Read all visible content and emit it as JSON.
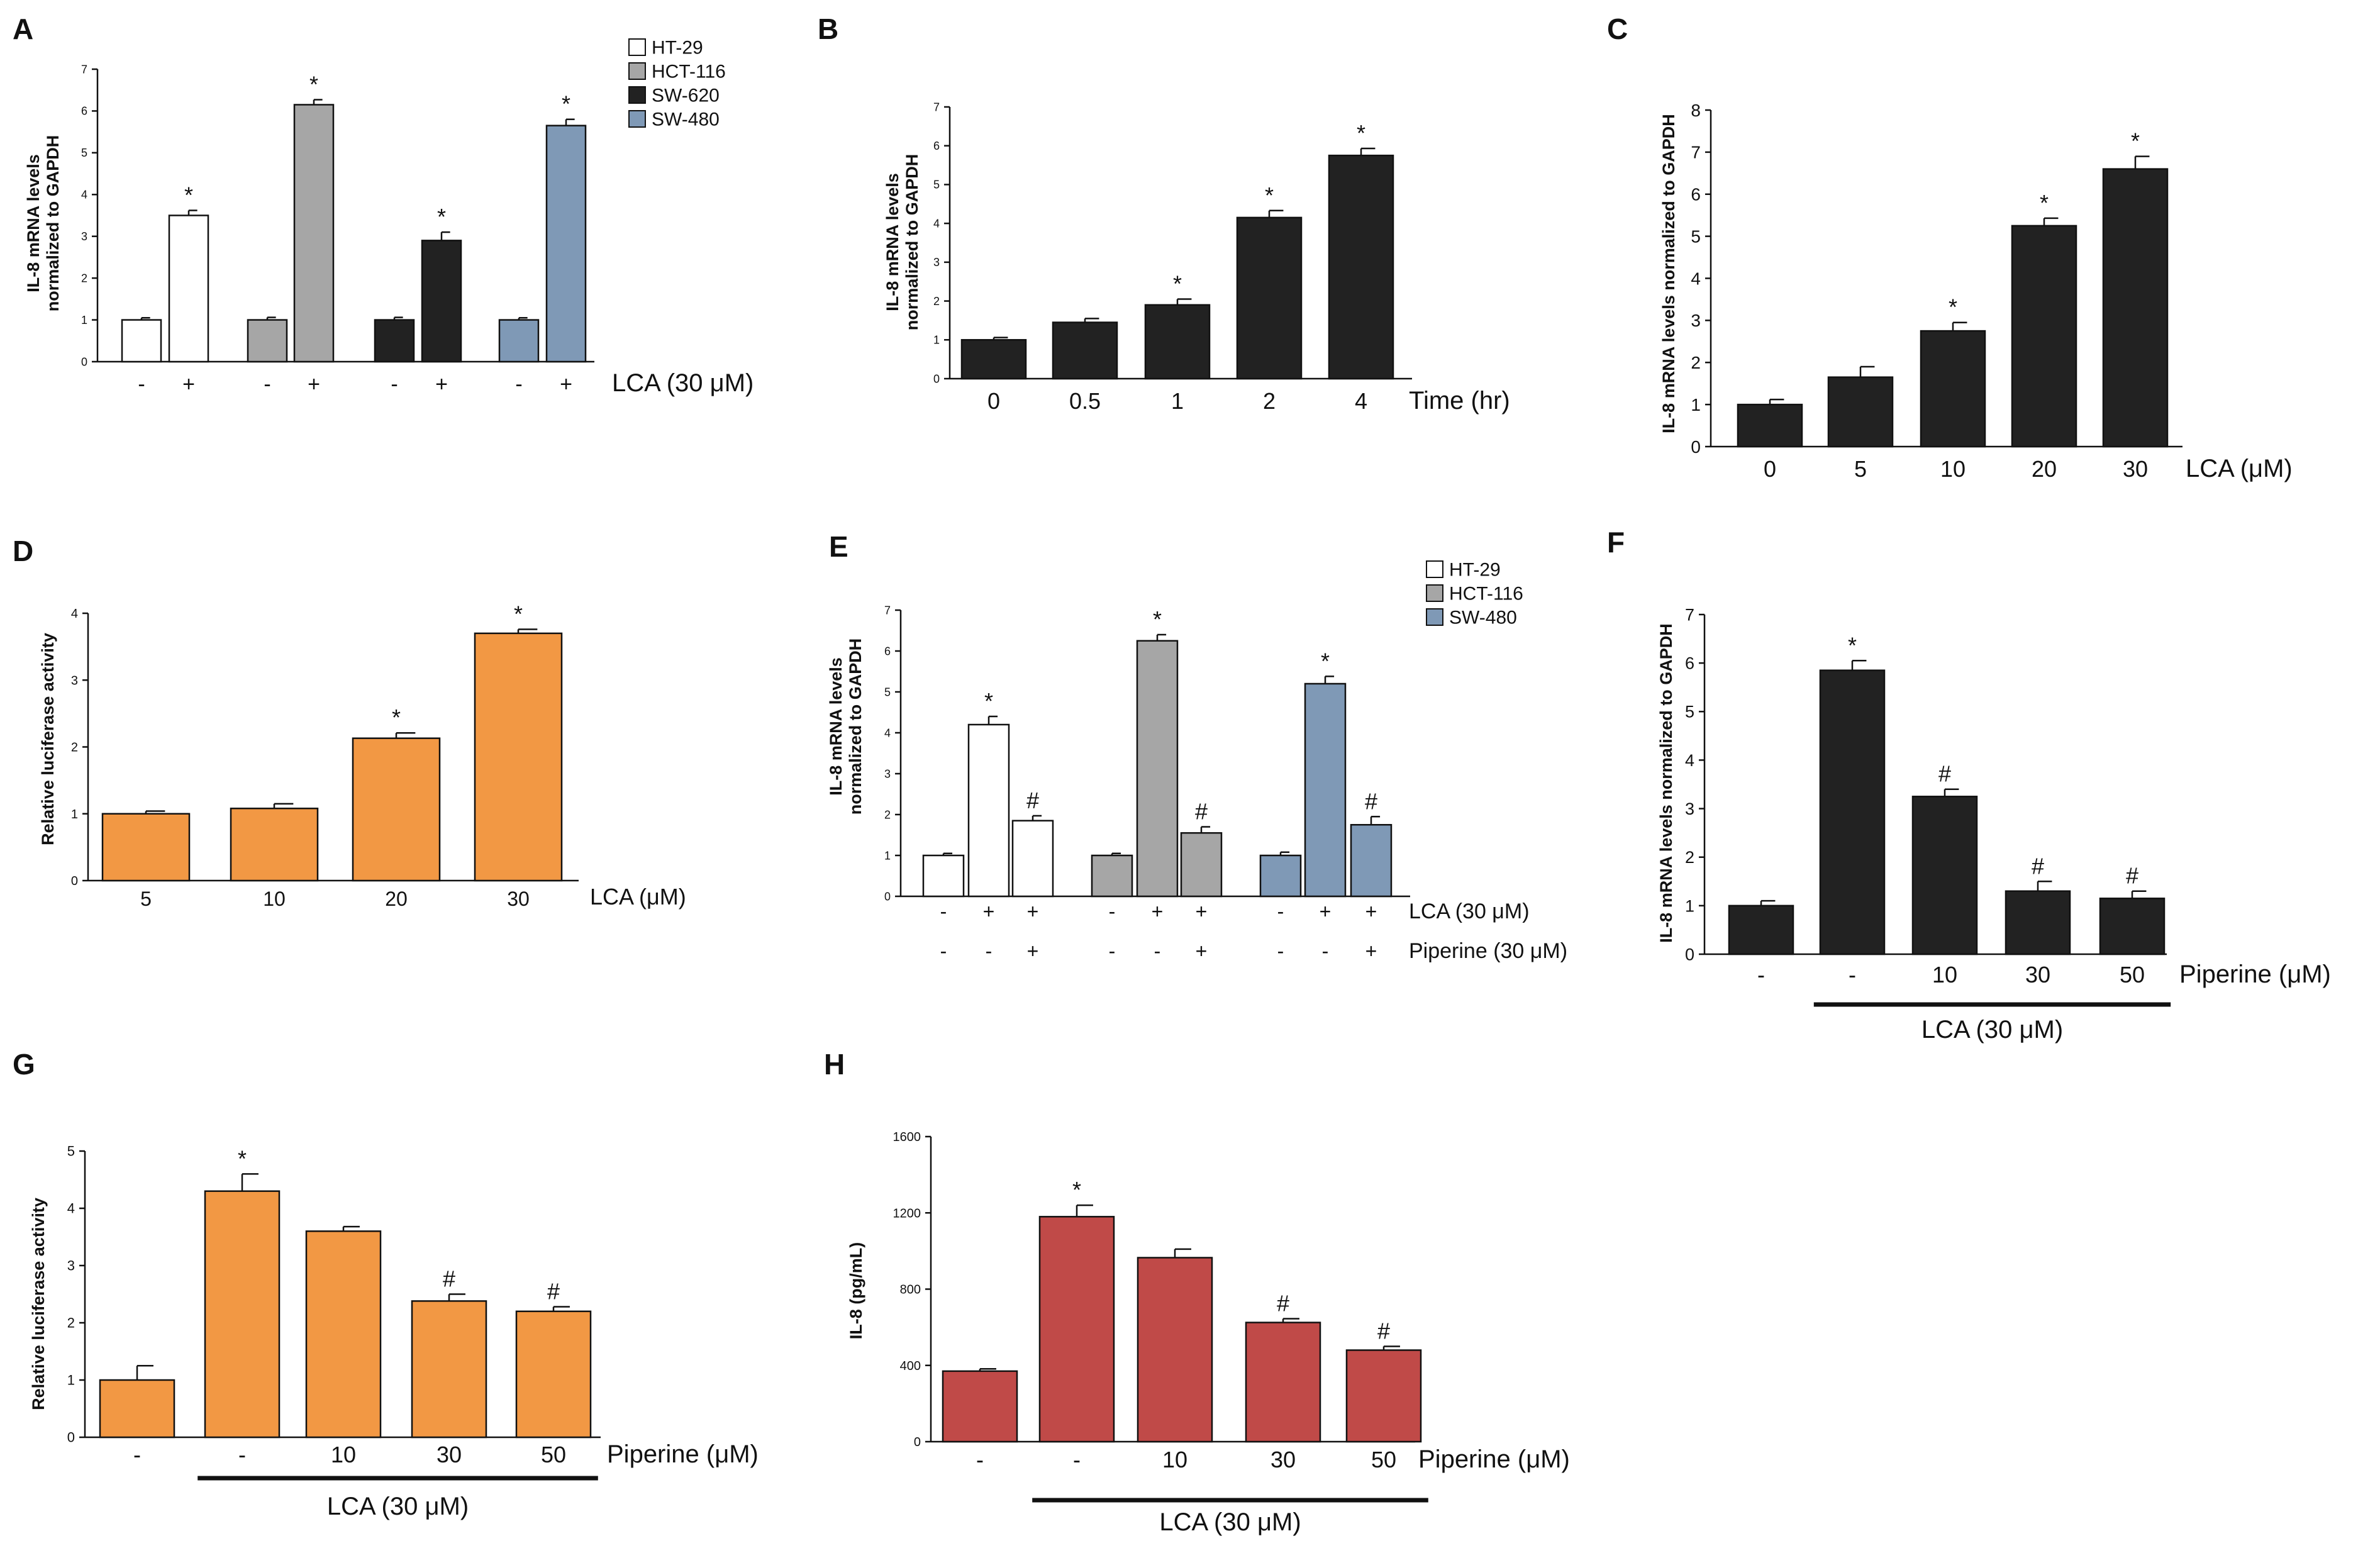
{
  "colors": {
    "white": "#ffffff",
    "grey": "#a6a6a6",
    "black": "#222222",
    "blue": "#7f99b6",
    "orange": "#f29844",
    "red": "#c04a48"
  },
  "chart_data": [
    {
      "panel": "A",
      "type": "bar",
      "ylabel": "IL-8 mRNA levels normalized to GAPDH",
      "ylim": [
        0,
        7
      ],
      "yticks": [
        0,
        1,
        2,
        3,
        4,
        5,
        6,
        7
      ],
      "categories": [
        "-",
        "+",
        "-",
        "+",
        "-",
        "+",
        "-",
        "+"
      ],
      "values": [
        1.0,
        3.5,
        1.0,
        6.15,
        1.0,
        2.9,
        1.0,
        5.65
      ],
      "errors": [
        0.05,
        0.12,
        0.06,
        0.12,
        0.06,
        0.2,
        0.05,
        0.15
      ],
      "marks": [
        "",
        "*",
        "",
        "*",
        "",
        "*",
        "",
        "*"
      ],
      "bar_colors": [
        "white",
        "white",
        "grey",
        "grey",
        "black",
        "black",
        "blue",
        "blue"
      ],
      "xlabel": "LCA (30 μM)",
      "legend": [
        {
          "name": "HT-29",
          "color": "white"
        },
        {
          "name": "HCT-116",
          "color": "grey"
        },
        {
          "name": "SW-620",
          "color": "black"
        },
        {
          "name": "SW-480",
          "color": "blue"
        }
      ]
    },
    {
      "panel": "B",
      "type": "bar",
      "ylabel": "IL-8 mRNA levels normalized to GAPDH",
      "ylim": [
        0,
        7
      ],
      "yticks": [
        0,
        1,
        2,
        3,
        4,
        5,
        6,
        7
      ],
      "categories": [
        "0",
        "0.5",
        "1",
        "2",
        "4"
      ],
      "values": [
        1.0,
        1.45,
        1.9,
        4.15,
        5.75
      ],
      "errors": [
        0.06,
        0.1,
        0.15,
        0.18,
        0.18
      ],
      "marks": [
        "",
        "",
        "*",
        "*",
        "*"
      ],
      "bar_colors": [
        "black",
        "black",
        "black",
        "black",
        "black"
      ],
      "xlabel": "Time (hr)"
    },
    {
      "panel": "C",
      "type": "bar",
      "ylabel": "IL-8 mRNA levels normalized to GAPDH",
      "ylim": [
        0,
        8
      ],
      "yticks": [
        0,
        1,
        2,
        3,
        4,
        5,
        6,
        7,
        8
      ],
      "categories": [
        "0",
        "5",
        "10",
        "20",
        "30"
      ],
      "values": [
        1.0,
        1.65,
        2.75,
        5.25,
        6.6
      ],
      "errors": [
        0.12,
        0.25,
        0.2,
        0.18,
        0.3
      ],
      "marks": [
        "",
        "",
        "*",
        "*",
        "*"
      ],
      "bar_colors": [
        "black",
        "black",
        "black",
        "black",
        "black"
      ],
      "xlabel": "LCA (μM)"
    },
    {
      "panel": "D",
      "type": "bar",
      "ylabel": "Relative luciferase activity",
      "ylim": [
        0,
        4
      ],
      "yticks": [
        0,
        1,
        2,
        3,
        4
      ],
      "categories": [
        "5",
        "10",
        "20",
        "30"
      ],
      "values": [
        1.0,
        1.08,
        2.13,
        3.7
      ],
      "errors": [
        0.04,
        0.07,
        0.08,
        0.06
      ],
      "marks": [
        "",
        "",
        "*",
        "*"
      ],
      "bar_colors": [
        "orange",
        "orange",
        "orange",
        "orange"
      ],
      "xlabel": "LCA (μM)"
    },
    {
      "panel": "E",
      "type": "bar",
      "ylabel": "IL-8 mRNA levels normalized to GAPDH",
      "ylim": [
        0,
        7
      ],
      "yticks": [
        0,
        1,
        2,
        3,
        4,
        5,
        6,
        7
      ],
      "categories": [
        "-",
        "+",
        "+",
        "-",
        "+",
        "+",
        "-",
        "+",
        "+"
      ],
      "categories2": [
        "-",
        "-",
        "+",
        "-",
        "-",
        "+",
        "-",
        "-",
        "+"
      ],
      "values": [
        1.0,
        4.2,
        1.85,
        1.0,
        6.25,
        1.55,
        1.0,
        5.2,
        1.75
      ],
      "errors": [
        0.05,
        0.2,
        0.12,
        0.05,
        0.15,
        0.15,
        0.08,
        0.18,
        0.2
      ],
      "marks": [
        "",
        "*",
        "#",
        "",
        "*",
        "#",
        "",
        "*",
        "#"
      ],
      "bar_colors": [
        "white",
        "white",
        "white",
        "grey",
        "grey",
        "grey",
        "blue",
        "blue",
        "blue"
      ],
      "xlabel": "LCA (30 μM)",
      "xlabel2": "Piperine (30 μM)",
      "legend": [
        {
          "name": "HT-29",
          "color": "white"
        },
        {
          "name": "HCT-116",
          "color": "grey"
        },
        {
          "name": "SW-480",
          "color": "blue"
        }
      ]
    },
    {
      "panel": "F",
      "type": "bar",
      "ylabel": "IL-8 mRNA levels normalized to GAPDH",
      "ylim": [
        0,
        7
      ],
      "yticks": [
        0,
        1,
        2,
        3,
        4,
        5,
        6,
        7
      ],
      "categories": [
        "-",
        "-",
        "10",
        "30",
        "50"
      ],
      "values": [
        1.0,
        5.85,
        3.25,
        1.3,
        1.15
      ],
      "errors": [
        0.1,
        0.2,
        0.15,
        0.2,
        0.15
      ],
      "marks": [
        "",
        "*",
        "#",
        "#",
        "#"
      ],
      "bar_colors": [
        "black",
        "black",
        "black",
        "black",
        "black"
      ],
      "xlabel": "Piperine (μM)",
      "group_label": "LCA (30 μM)",
      "group_span": [
        1,
        4
      ]
    },
    {
      "panel": "G",
      "type": "bar",
      "ylabel": "Relative luciferase activity",
      "ylim": [
        0,
        5
      ],
      "yticks": [
        0,
        1,
        2,
        3,
        4,
        5
      ],
      "categories": [
        "-",
        "-",
        "10",
        "30",
        "50"
      ],
      "values": [
        1.0,
        4.3,
        3.6,
        2.38,
        2.2
      ],
      "errors": [
        0.25,
        0.3,
        0.08,
        0.12,
        0.08
      ],
      "marks": [
        "",
        "*",
        "",
        "#",
        "#"
      ],
      "bar_colors": [
        "orange",
        "orange",
        "orange",
        "orange",
        "orange"
      ],
      "xlabel": "Piperine (μM)",
      "group_label": "LCA (30 μM)",
      "group_span": [
        1,
        4
      ]
    },
    {
      "panel": "H",
      "type": "bar",
      "ylabel": "IL-8 (pg/mL)",
      "ylim": [
        0,
        1600
      ],
      "yticks": [
        0,
        400,
        800,
        1200,
        1600
      ],
      "categories": [
        "-",
        "-",
        "10",
        "30",
        "50"
      ],
      "values": [
        370,
        1180,
        965,
        625,
        480
      ],
      "errors": [
        12,
        60,
        45,
        20,
        20
      ],
      "marks": [
        "",
        "*",
        "",
        "#",
        "#"
      ],
      "bar_colors": [
        "red",
        "red",
        "red",
        "red",
        "red"
      ],
      "xlabel": "Piperine (μM)",
      "group_label": "LCA (30 μM)",
      "group_span": [
        1,
        4
      ]
    }
  ]
}
